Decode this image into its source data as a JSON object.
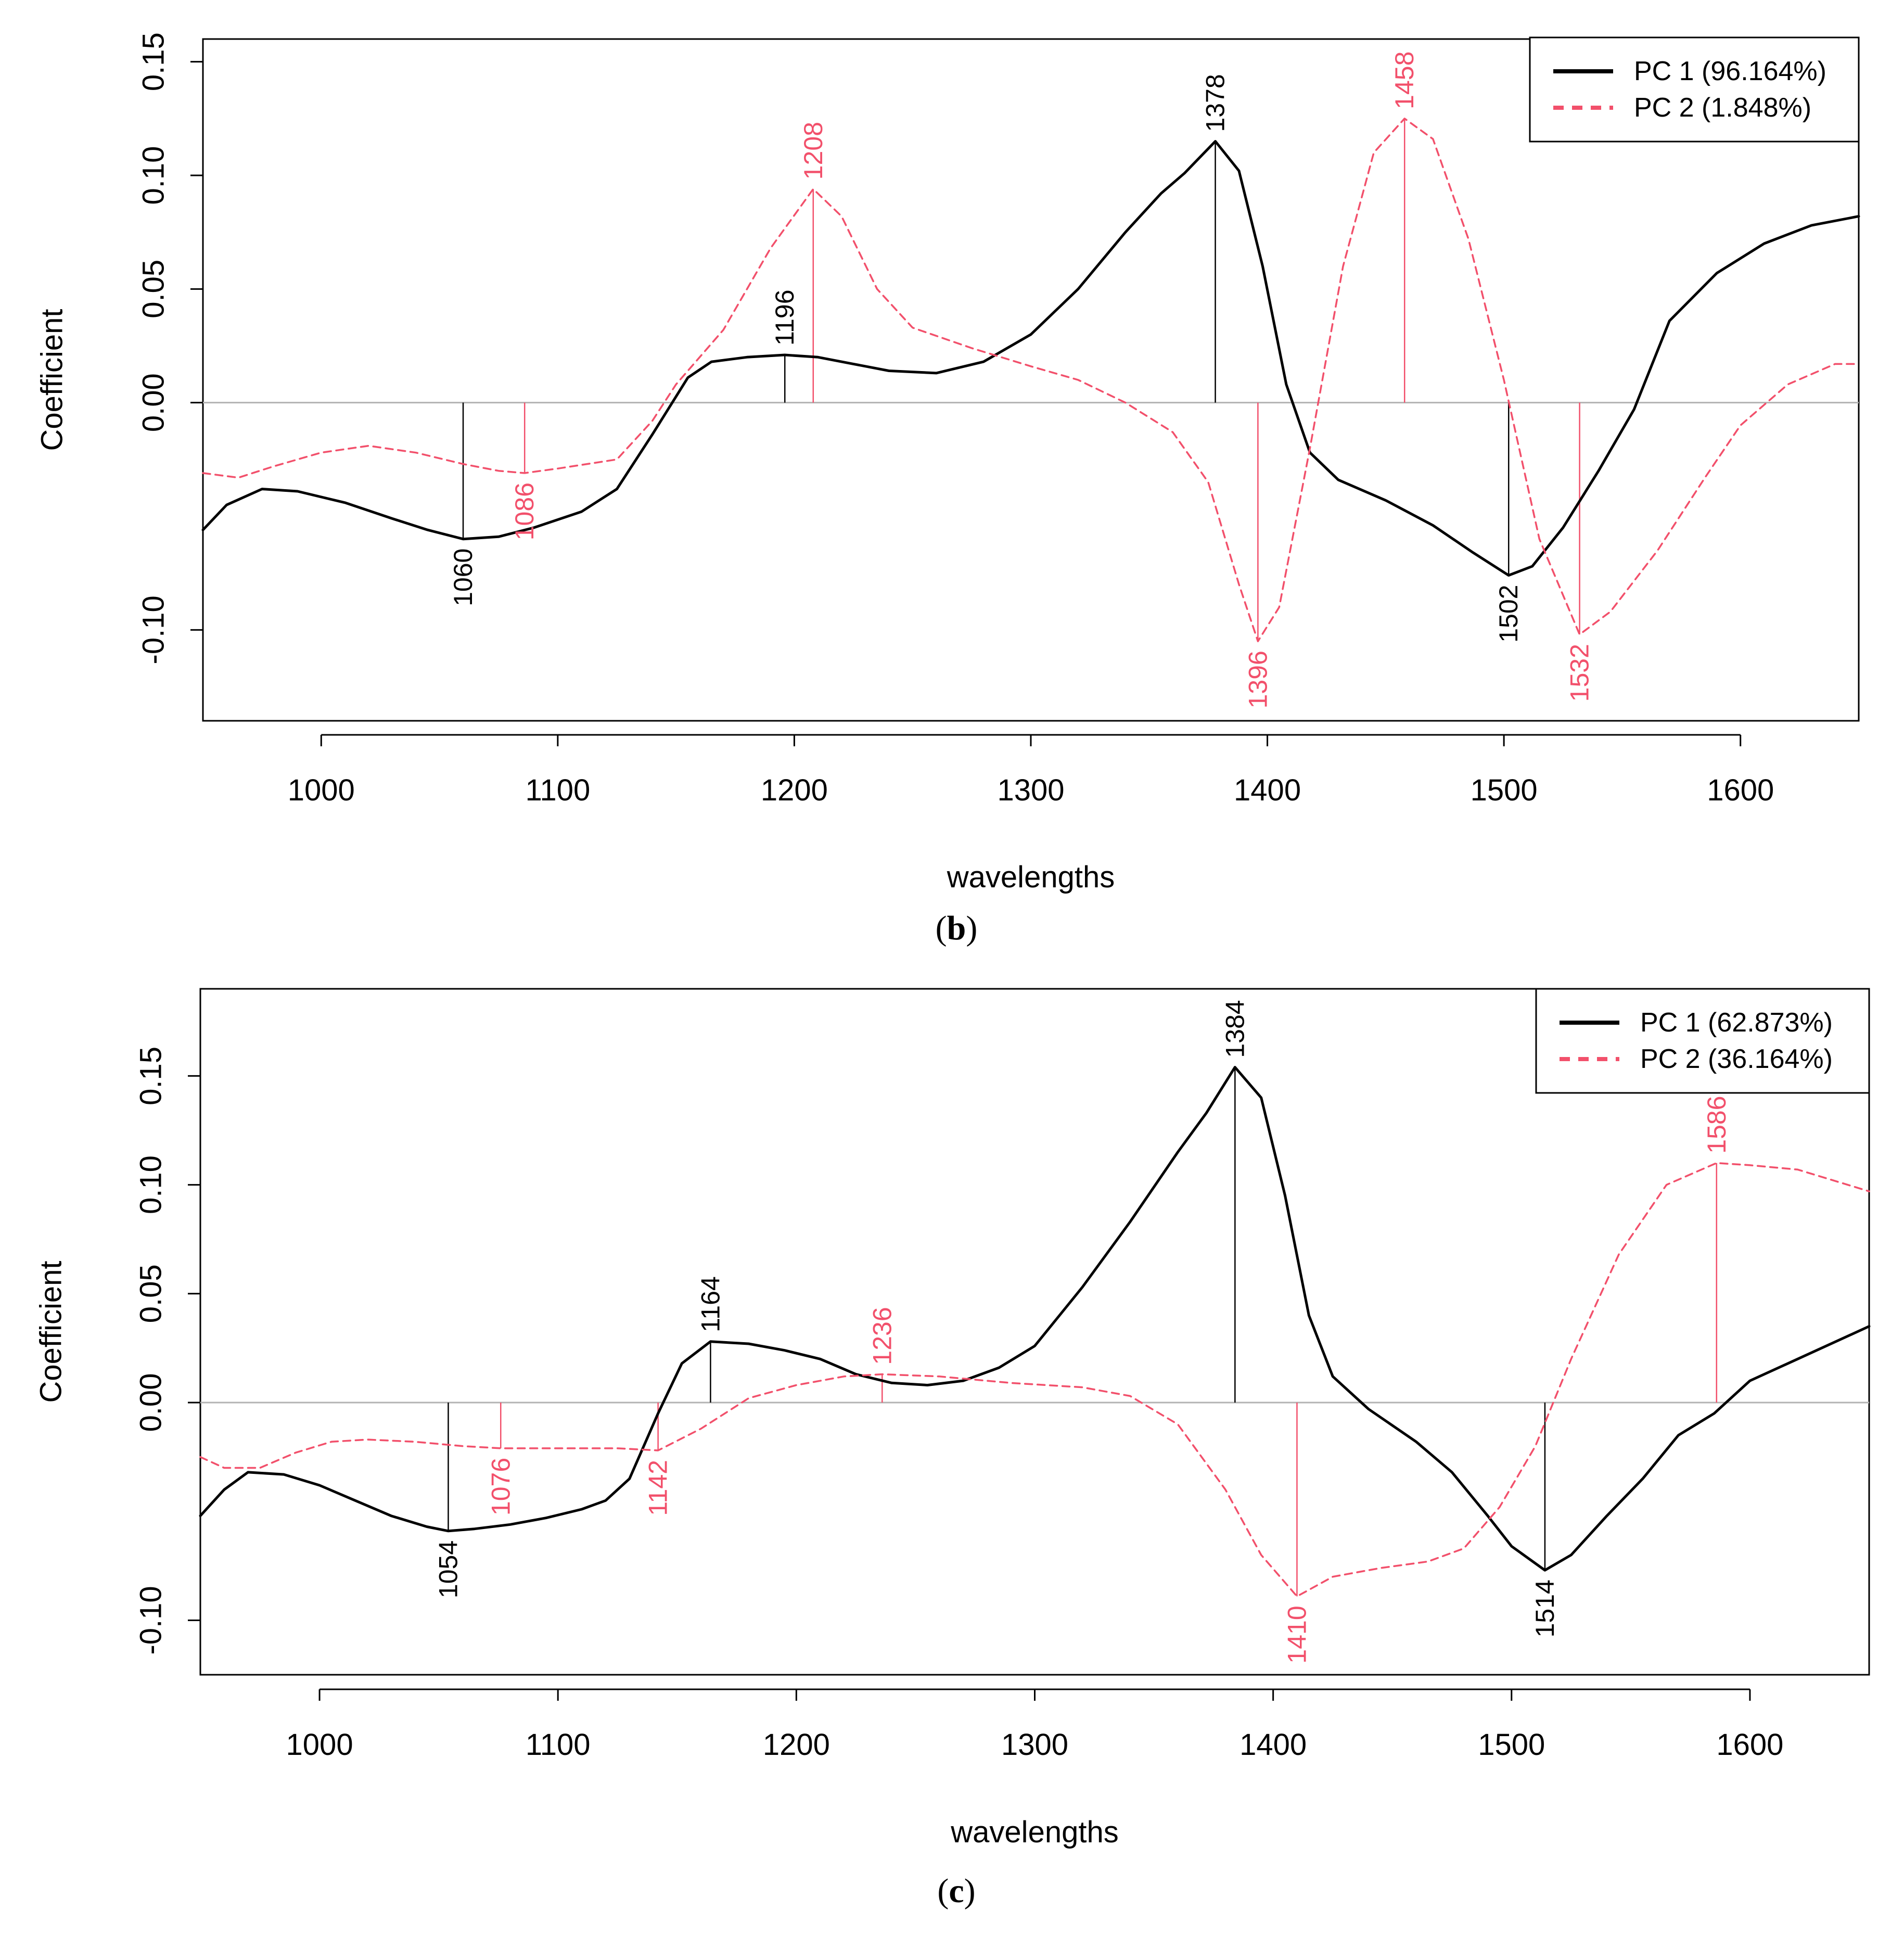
{
  "colors": {
    "pc1": "#000000",
    "pc2": "#f2506b",
    "zero_line": "#b3b3b3",
    "frame": "#000000"
  },
  "chart_data": [
    {
      "type": "line",
      "panel_label": "b",
      "xlabel": "wavelengths",
      "ylabel": "Coefficient",
      "xlim": [
        950,
        1650
      ],
      "ylim": [
        -0.14,
        0.16
      ],
      "xticks": [
        1000,
        1100,
        1200,
        1300,
        1400,
        1500,
        1600
      ],
      "yticks": [
        -0.1,
        0.0,
        0.05,
        0.1,
        0.15
      ],
      "ytick_labels": [
        "-0.10",
        "0.00",
        "0.05",
        "0.10",
        "0.15"
      ],
      "legend_position": "top-right",
      "series": [
        {
          "name": "PC 1 (96.164%)",
          "key": "pc1",
          "style": "solid",
          "x": [
            950,
            960,
            975,
            990,
            1010,
            1030,
            1045,
            1060,
            1075,
            1090,
            1110,
            1125,
            1140,
            1155,
            1165,
            1180,
            1196,
            1210,
            1225,
            1240,
            1260,
            1280,
            1300,
            1320,
            1340,
            1355,
            1365,
            1378,
            1388,
            1398,
            1408,
            1418,
            1430,
            1450,
            1470,
            1487,
            1502,
            1512,
            1525,
            1540,
            1555,
            1570,
            1590,
            1610,
            1630,
            1650
          ],
          "y": [
            -0.056,
            -0.045,
            -0.038,
            -0.039,
            -0.044,
            -0.051,
            -0.056,
            -0.06,
            -0.059,
            -0.055,
            -0.048,
            -0.038,
            -0.014,
            0.011,
            0.018,
            0.02,
            0.021,
            0.02,
            0.017,
            0.014,
            0.013,
            0.018,
            0.03,
            0.05,
            0.075,
            0.092,
            0.101,
            0.115,
            0.102,
            0.06,
            0.008,
            -0.022,
            -0.034,
            -0.043,
            -0.054,
            -0.066,
            -0.076,
            -0.072,
            -0.055,
            -0.03,
            -0.003,
            0.036,
            0.057,
            0.07,
            0.078,
            0.082
          ]
        },
        {
          "name": "PC 2 (1.848%)",
          "key": "pc2",
          "style": "dashed",
          "x": [
            950,
            965,
            980,
            1000,
            1020,
            1040,
            1060,
            1075,
            1086,
            1100,
            1125,
            1140,
            1150,
            1170,
            1190,
            1208,
            1220,
            1235,
            1250,
            1275,
            1300,
            1320,
            1340,
            1360,
            1375,
            1388,
            1396,
            1405,
            1418,
            1432,
            1445,
            1458,
            1470,
            1485,
            1500,
            1515,
            1532,
            1545,
            1565,
            1585,
            1600,
            1620,
            1640,
            1650
          ],
          "y": [
            -0.031,
            -0.033,
            -0.028,
            -0.022,
            -0.019,
            -0.022,
            -0.027,
            -0.03,
            -0.031,
            -0.029,
            -0.025,
            -0.008,
            0.008,
            0.032,
            0.068,
            0.094,
            0.082,
            0.05,
            0.033,
            0.024,
            0.016,
            0.01,
            0.0,
            -0.013,
            -0.035,
            -0.08,
            -0.105,
            -0.09,
            -0.02,
            0.06,
            0.11,
            0.125,
            0.116,
            0.072,
            0.01,
            -0.06,
            -0.102,
            -0.092,
            -0.065,
            -0.033,
            -0.01,
            0.008,
            0.017,
            0.017
          ]
        }
      ],
      "peaks": [
        {
          "label": "1060",
          "x": 1060,
          "y": -0.06,
          "key": "pc1"
        },
        {
          "label": "1196",
          "x": 1196,
          "y": 0.021,
          "key": "pc1"
        },
        {
          "label": "1378",
          "x": 1378,
          "y": 0.115,
          "key": "pc1"
        },
        {
          "label": "1502",
          "x": 1502,
          "y": -0.076,
          "key": "pc1"
        },
        {
          "label": "1086",
          "x": 1086,
          "y": -0.031,
          "key": "pc2"
        },
        {
          "label": "1208",
          "x": 1208,
          "y": 0.094,
          "key": "pc2"
        },
        {
          "label": "1396",
          "x": 1396,
          "y": -0.105,
          "key": "pc2"
        },
        {
          "label": "1458",
          "x": 1458,
          "y": 0.125,
          "key": "pc2"
        },
        {
          "label": "1532",
          "x": 1532,
          "y": -0.102,
          "key": "pc2"
        }
      ]
    },
    {
      "type": "line",
      "panel_label": "c",
      "xlabel": "wavelengths",
      "ylabel": "Coefficient",
      "xlim": [
        950,
        1650
      ],
      "ylim": [
        -0.125,
        0.19
      ],
      "xticks": [
        1000,
        1100,
        1200,
        1300,
        1400,
        1500,
        1600
      ],
      "yticks": [
        -0.1,
        0.0,
        0.05,
        0.1,
        0.15
      ],
      "ytick_labels": [
        "-0.10",
        "0.00",
        "0.05",
        "0.10",
        "0.15"
      ],
      "legend_position": "top-right",
      "series": [
        {
          "name": "PC 1 (62.873%)",
          "key": "pc1",
          "style": "solid",
          "x": [
            950,
            960,
            970,
            985,
            1000,
            1015,
            1030,
            1045,
            1054,
            1065,
            1080,
            1095,
            1110,
            1120,
            1130,
            1142,
            1152,
            1164,
            1180,
            1195,
            1210,
            1225,
            1240,
            1255,
            1270,
            1285,
            1300,
            1320,
            1340,
            1360,
            1372,
            1384,
            1395,
            1405,
            1415,
            1425,
            1440,
            1460,
            1475,
            1490,
            1500,
            1514,
            1525,
            1540,
            1555,
            1570,
            1585,
            1600,
            1620,
            1650
          ],
          "y": [
            -0.052,
            -0.04,
            -0.032,
            -0.033,
            -0.038,
            -0.045,
            -0.052,
            -0.057,
            -0.059,
            -0.058,
            -0.056,
            -0.053,
            -0.049,
            -0.045,
            -0.035,
            -0.005,
            0.018,
            0.028,
            0.027,
            0.024,
            0.02,
            0.013,
            0.009,
            0.008,
            0.01,
            0.016,
            0.026,
            0.053,
            0.083,
            0.115,
            0.133,
            0.154,
            0.14,
            0.095,
            0.04,
            0.012,
            -0.003,
            -0.018,
            -0.032,
            -0.052,
            -0.066,
            -0.077,
            -0.07,
            -0.052,
            -0.035,
            -0.015,
            -0.005,
            0.01,
            0.02,
            0.035
          ]
        },
        {
          "name": "PC 2 (36.164%)",
          "key": "pc2",
          "style": "dashed",
          "x": [
            950,
            960,
            975,
            990,
            1005,
            1020,
            1040,
            1060,
            1076,
            1100,
            1125,
            1142,
            1160,
            1180,
            1200,
            1220,
            1236,
            1260,
            1290,
            1320,
            1340,
            1360,
            1380,
            1395,
            1410,
            1425,
            1445,
            1465,
            1480,
            1495,
            1510,
            1525,
            1545,
            1565,
            1586,
            1600,
            1620,
            1635,
            1650
          ],
          "y": [
            -0.025,
            -0.03,
            -0.03,
            -0.023,
            -0.018,
            -0.017,
            -0.018,
            -0.02,
            -0.021,
            -0.021,
            -0.021,
            -0.022,
            -0.012,
            0.002,
            0.008,
            0.012,
            0.013,
            0.012,
            0.009,
            0.007,
            0.003,
            -0.01,
            -0.04,
            -0.07,
            -0.089,
            -0.08,
            -0.076,
            -0.073,
            -0.067,
            -0.048,
            -0.02,
            0.02,
            0.068,
            0.1,
            0.11,
            0.109,
            0.107,
            0.102,
            0.097
          ]
        }
      ],
      "peaks": [
        {
          "label": "1054",
          "x": 1054,
          "y": -0.059,
          "key": "pc1"
        },
        {
          "label": "1164",
          "x": 1164,
          "y": 0.028,
          "key": "pc1"
        },
        {
          "label": "1384",
          "x": 1384,
          "y": 0.154,
          "key": "pc1"
        },
        {
          "label": "1514",
          "x": 1514,
          "y": -0.077,
          "key": "pc1"
        },
        {
          "label": "1076",
          "x": 1076,
          "y": -0.021,
          "key": "pc2"
        },
        {
          "label": "1142",
          "x": 1142,
          "y": -0.022,
          "key": "pc2"
        },
        {
          "label": "1236",
          "x": 1236,
          "y": 0.013,
          "key": "pc2"
        },
        {
          "label": "1410",
          "x": 1410,
          "y": -0.089,
          "key": "pc2"
        },
        {
          "label": "1586",
          "x": 1586,
          "y": 0.11,
          "key": "pc2"
        }
      ]
    }
  ]
}
